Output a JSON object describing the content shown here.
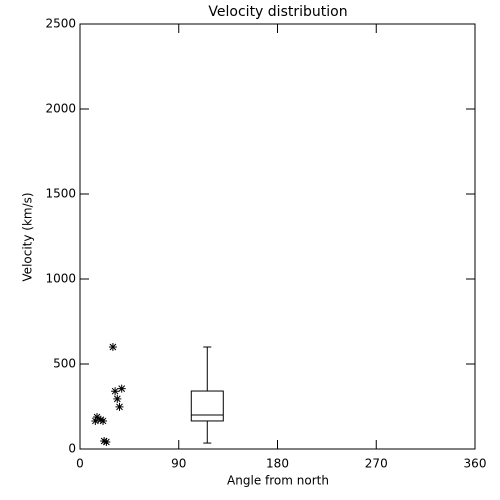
{
  "chart_data": {
    "type": "scatter",
    "title": "Velocity distribution",
    "x_label": "Angle from north",
    "y_label": "Velocity (km/s)",
    "xlim": [
      0,
      360
    ],
    "xticks": [
      0,
      90,
      180,
      270,
      360
    ],
    "ylim": [
      0,
      2500
    ],
    "yticks": [
      0,
      500,
      1000,
      1500,
      2000,
      2500
    ],
    "color": "#000000",
    "x": [
      30,
      32,
      34,
      38,
      36,
      15.5,
      19,
      14,
      21,
      22,
      24
    ],
    "values": [
      600,
      340,
      295,
      355,
      248,
      188,
      172,
      165,
      165,
      47,
      41
    ],
    "boxes": [
      {
        "position": 116,
        "min": 35,
        "q1": 165,
        "median": 200,
        "q3": 341,
        "max": 600
      }
    ]
  }
}
